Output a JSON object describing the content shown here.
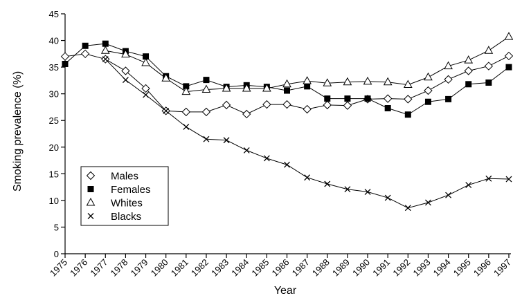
{
  "chart_data": {
    "type": "line",
    "xlabel": "Year",
    "ylabel": "Smoking prevalence (%)",
    "ylim": [
      0,
      45
    ],
    "yticks": [
      "0",
      "5",
      "10",
      "15",
      "20",
      "25",
      "30",
      "35",
      "40",
      "45"
    ],
    "categories": [
      "1975",
      "1976",
      "1977",
      "1978",
      "1979",
      "1980",
      "1981",
      "1982",
      "1983",
      "1984",
      "1985",
      "1986",
      "1987",
      "1988",
      "1989",
      "1990",
      "1991",
      "1992",
      "1993",
      "1994",
      "1995",
      "1996",
      "1997"
    ],
    "legend_position": "left-center",
    "grid": false,
    "series": [
      {
        "name": "Males",
        "marker": "diamond-open",
        "values": [
          37.0,
          37.5,
          36.5,
          34.3,
          31.0,
          26.8,
          26.6,
          26.6,
          27.9,
          26.2,
          28.0,
          28.0,
          27.1,
          27.9,
          27.8,
          29.0,
          29.1,
          29.0,
          30.6,
          32.7,
          34.3,
          35.2,
          37.1
        ]
      },
      {
        "name": "Females",
        "marker": "square-filled",
        "values": [
          35.6,
          39.0,
          39.4,
          38.0,
          37.0,
          33.3,
          31.4,
          32.6,
          31.3,
          31.6,
          31.3,
          30.6,
          31.4,
          29.1,
          29.1,
          29.1,
          27.3,
          26.1,
          28.5,
          29.0,
          31.8,
          32.1,
          35.0
        ]
      },
      {
        "name": "Whites",
        "marker": "triangle-open",
        "values": [
          null,
          null,
          38.1,
          37.4,
          35.8,
          32.9,
          30.4,
          30.8,
          31.0,
          31.0,
          31.0,
          31.8,
          32.4,
          32.0,
          32.2,
          32.3,
          32.2,
          31.7,
          33.1,
          35.2,
          36.3,
          38.1,
          40.7
        ]
      },
      {
        "name": "Blacks",
        "marker": "x",
        "values": [
          null,
          null,
          36.5,
          32.6,
          29.8,
          26.8,
          23.8,
          21.5,
          21.3,
          19.4,
          17.9,
          16.7,
          14.3,
          13.1,
          12.1,
          11.6,
          10.5,
          8.6,
          9.6,
          11.0,
          12.9,
          14.1,
          14.0
        ]
      }
    ]
  }
}
